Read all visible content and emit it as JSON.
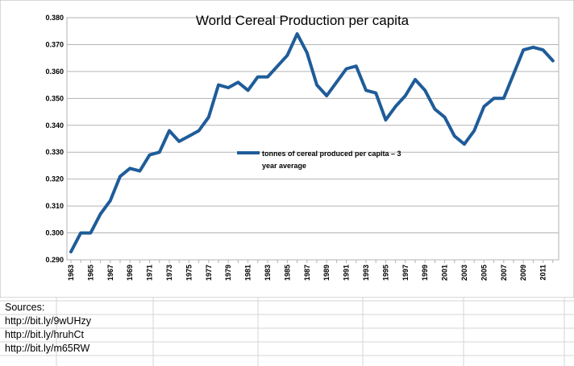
{
  "chart_data": {
    "type": "line",
    "title": "World Cereal Production per capita",
    "xlabel": "",
    "ylabel": "",
    "ylim": [
      0.29,
      0.38
    ],
    "yticks": [
      "0.290",
      "0.300",
      "0.310",
      "0.320",
      "0.330",
      "0.340",
      "0.350",
      "0.360",
      "0.370",
      "0.380"
    ],
    "x": [
      1963,
      1964,
      1965,
      1966,
      1967,
      1968,
      1969,
      1970,
      1971,
      1972,
      1973,
      1974,
      1975,
      1976,
      1977,
      1978,
      1979,
      1980,
      1981,
      1982,
      1983,
      1984,
      1985,
      1986,
      1987,
      1988,
      1989,
      1990,
      1991,
      1992,
      1993,
      1994,
      1995,
      1996,
      1997,
      1998,
      1999,
      2000,
      2001,
      2002,
      2003,
      2004,
      2005,
      2006,
      2007,
      2008,
      2009,
      2010,
      2011,
      2012
    ],
    "xtick_labels": [
      "1963",
      "1965",
      "1967",
      "1969",
      "1971",
      "1973",
      "1975",
      "1977",
      "1979",
      "1981",
      "1983",
      "1985",
      "1987",
      "1989",
      "1991",
      "1993",
      "1995",
      "1997",
      "1999",
      "2001",
      "2003",
      "2005",
      "2007",
      "2009",
      "2011"
    ],
    "grid": true,
    "legend_position": "center",
    "series": [
      {
        "name": "tonnes of cereal produced per capita – 3 year average",
        "color": "#1f5c99",
        "values": [
          0.293,
          0.3,
          0.3,
          0.307,
          0.312,
          0.321,
          0.324,
          0.323,
          0.329,
          0.33,
          0.338,
          0.334,
          0.336,
          0.338,
          0.343,
          0.355,
          0.354,
          0.356,
          0.353,
          0.358,
          0.358,
          0.362,
          0.366,
          0.374,
          0.367,
          0.355,
          0.351,
          0.356,
          0.361,
          0.362,
          0.353,
          0.352,
          0.342,
          0.347,
          0.351,
          0.357,
          0.353,
          0.346,
          0.343,
          0.336,
          0.333,
          0.338,
          0.347,
          0.35,
          0.35,
          0.359,
          0.368,
          0.369,
          0.368,
          0.364
        ]
      }
    ]
  },
  "sources": {
    "heading": "Sources:",
    "links": [
      "http://bit.ly/9wUHzy",
      "http://bit.ly/hruhCt",
      "http://bit.ly/m65RW"
    ]
  }
}
